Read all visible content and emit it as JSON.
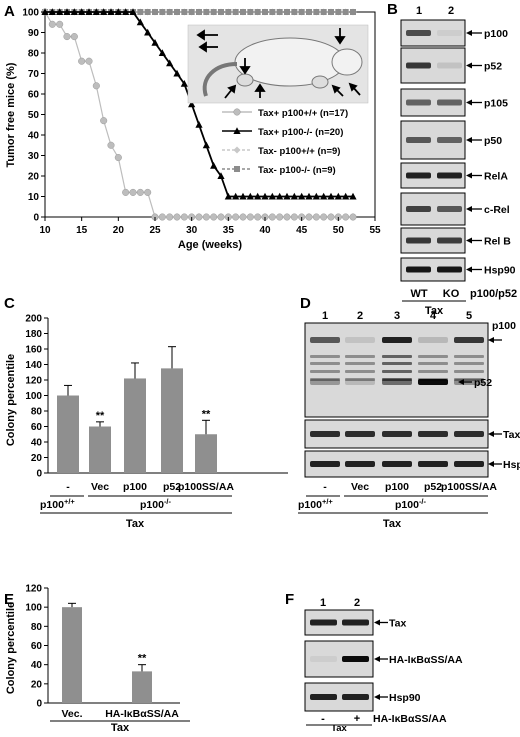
{
  "panels": {
    "A": {
      "letter": "A"
    },
    "B": {
      "letter": "B",
      "lanes": [
        "1",
        "2"
      ],
      "bands": [
        "p100",
        "p52",
        "p105",
        "p50",
        "RelA",
        "c-Rel",
        "Rel B",
        "Hsp90"
      ],
      "genotypes": [
        "WT",
        "KO"
      ],
      "genotype_label": "p100/p52",
      "condition": "Tax"
    },
    "C": {
      "letter": "C"
    },
    "D": {
      "letter": "D",
      "lanes": [
        "1",
        "2",
        "3",
        "4",
        "5"
      ],
      "bands": [
        "p100",
        "p52",
        "Tax",
        "Hsp90"
      ],
      "lane_labels": [
        "-",
        "Vec",
        "p100",
        "p52",
        "p100SS/AA"
      ],
      "group_left": "p100",
      "group_left_sup": "+/+",
      "group_right": "p100",
      "group_right_sup": "-/-",
      "condition": "Tax"
    },
    "E": {
      "letter": "E"
    },
    "F": {
      "letter": "F",
      "lanes": [
        "1",
        "2"
      ],
      "bands": [
        "Tax",
        "HA-IκBαSS/AA",
        "Hsp90"
      ],
      "signs": [
        "-",
        "+"
      ],
      "treatment": "HA-IκBαSS/AA",
      "condition": "Tax"
    }
  },
  "chart_data": [
    {
      "panel": "A",
      "type": "line",
      "xlabel": "Age (weeks)",
      "ylabel": "Tumor free mice (%)",
      "xlim": [
        10,
        55
      ],
      "ylim": [
        0,
        100
      ],
      "xticks": [
        "10",
        "15",
        "20",
        "25",
        "30",
        "35",
        "40",
        "45",
        "50",
        "55"
      ],
      "yticks": [
        "0",
        "10",
        "20",
        "30",
        "40",
        "50",
        "60",
        "70",
        "80",
        "90",
        "100"
      ],
      "legend_position": "right",
      "series": [
        {
          "name": "Tax+ p100+/+ (n=17)",
          "color": "#bdbdbd",
          "marker": "circle",
          "x": [
            10,
            11,
            12,
            13,
            14,
            15,
            16,
            17,
            18,
            19,
            20,
            21,
            22,
            23,
            24,
            25,
            26,
            27,
            28,
            29,
            30,
            31,
            32,
            33,
            34,
            35,
            36,
            37,
            38,
            39,
            40,
            41,
            42,
            43,
            44,
            45,
            46,
            47,
            48,
            49,
            50,
            51,
            52
          ],
          "y": [
            100,
            94,
            94,
            88,
            88,
            76,
            76,
            64,
            47,
            35,
            29,
            12,
            12,
            12,
            12,
            0,
            0,
            0,
            0,
            0,
            0,
            0,
            0,
            0,
            0,
            0,
            0,
            0,
            0,
            0,
            0,
            0,
            0,
            0,
            0,
            0,
            0,
            0,
            0,
            0,
            0,
            0,
            0
          ]
        },
        {
          "name": "Tax+ p100-/- (n=20)",
          "color": "#000000",
          "marker": "triangle",
          "x": [
            10,
            11,
            12,
            13,
            14,
            15,
            16,
            17,
            18,
            19,
            20,
            21,
            22,
            23,
            24,
            25,
            26,
            27,
            28,
            29,
            30,
            31,
            32,
            33,
            34,
            35,
            36,
            37,
            38,
            39,
            40,
            41,
            42,
            43,
            44,
            45,
            46,
            47,
            48,
            49,
            50,
            51,
            52
          ],
          "y": [
            100,
            100,
            100,
            100,
            100,
            100,
            100,
            100,
            100,
            100,
            100,
            100,
            100,
            95,
            90,
            85,
            80,
            75,
            70,
            65,
            55,
            45,
            35,
            25,
            20,
            10,
            10,
            10,
            10,
            10,
            10,
            10,
            10,
            10,
            10,
            10,
            10,
            10,
            10,
            10,
            10,
            10,
            10
          ]
        },
        {
          "name": "Tax- p100+/+ (n=9)",
          "color": "#c8c8c8",
          "marker": "diamond",
          "x": [
            10,
            52
          ],
          "y": [
            100,
            100
          ]
        },
        {
          "name": "Tax- p100-/- (n=9)",
          "color": "#8c8c8c",
          "marker": "square",
          "x": [
            10,
            52
          ],
          "y": [
            100,
            100
          ]
        }
      ]
    },
    {
      "panel": "C",
      "type": "bar",
      "ylabel": "Colony percentile",
      "ylim": [
        0,
        200
      ],
      "yticks": [
        "0",
        "20",
        "40",
        "60",
        "80",
        "100",
        "120",
        "140",
        "160",
        "180",
        "200"
      ],
      "categories": [
        "-",
        "Vec",
        "p100",
        "p52",
        "p100SS/AA"
      ],
      "values": [
        100,
        60,
        122,
        135,
        50
      ],
      "errors": [
        13,
        6,
        20,
        28,
        18
      ],
      "significance": [
        "",
        "**",
        "",
        "",
        "**"
      ],
      "group_left": "p100",
      "group_left_sup": "+/+",
      "group_right": "p100",
      "group_right_sup": "-/-",
      "condition": "Tax"
    },
    {
      "panel": "E",
      "type": "bar",
      "ylabel": "Colony percentile",
      "ylim": [
        0,
        120
      ],
      "yticks": [
        "0",
        "20",
        "40",
        "60",
        "80",
        "100",
        "120"
      ],
      "categories": [
        "Vec.",
        "HA-IκBαSS/AA"
      ],
      "values": [
        100,
        33
      ],
      "errors": [
        4,
        7
      ],
      "significance": [
        "",
        "**"
      ],
      "condition": "Tax"
    }
  ]
}
